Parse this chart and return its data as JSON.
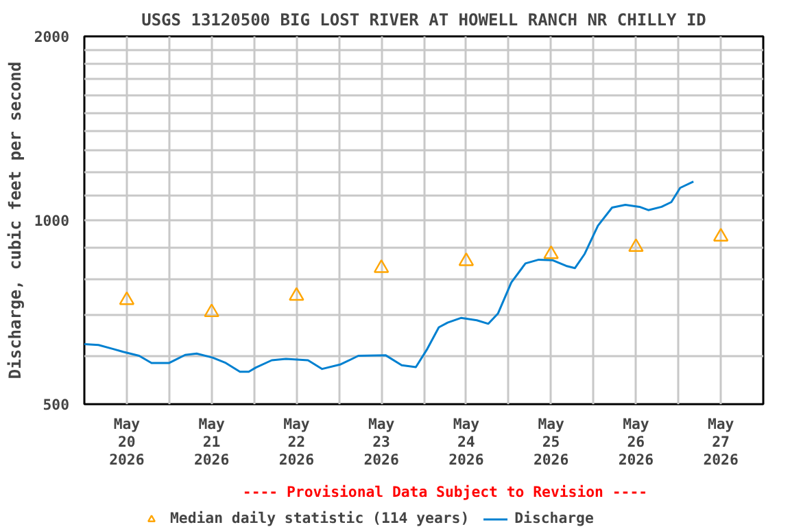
{
  "chart_data": {
    "type": "line",
    "title": "USGS 13120500 BIG LOST RIVER AT HOWELL RANCH NR CHILLY ID",
    "ylabel": "Discharge, cubic feet per second",
    "log": "y",
    "grid": true,
    "legend": "bottom",
    "annotations": [
      "---- Provisional Data Subject to Revision ----"
    ],
    "xlim": [
      "2026-05-20T00:00",
      "2026-05-28T00:00"
    ],
    "xticks": [
      {
        "value": "2026-05-20T00:00",
        "label": null
      },
      {
        "value": "2026-05-20T12:00",
        "label": "May\n20\n2026"
      },
      {
        "value": "2026-05-21T00:00",
        "label": null
      },
      {
        "value": "2026-05-21T12:00",
        "label": "May\n21\n2026"
      },
      {
        "value": "2026-05-22T00:00",
        "label": null
      },
      {
        "value": "2026-05-22T12:00",
        "label": "May\n22\n2026"
      },
      {
        "value": "2026-05-23T00:00",
        "label": null
      },
      {
        "value": "2026-05-23T12:00",
        "label": "May\n23\n2026"
      },
      {
        "value": "2026-05-24T00:00",
        "label": null
      },
      {
        "value": "2026-05-24T12:00",
        "label": "May\n24\n2026"
      },
      {
        "value": "2026-05-25T00:00",
        "label": null
      },
      {
        "value": "2026-05-25T12:00",
        "label": "May\n25\n2026"
      },
      {
        "value": "2026-05-26T00:00",
        "label": null
      },
      {
        "value": "2026-05-26T12:00",
        "label": "May\n26\n2026"
      },
      {
        "value": "2026-05-27T00:00",
        "label": null
      },
      {
        "value": "2026-05-27T12:00",
        "label": "May\n27\n2026"
      },
      {
        "value": "2026-05-28T00:00",
        "label": null
      }
    ],
    "ylim": [
      500,
      2000
    ],
    "yticks": [
      500,
      {
        "value": 600,
        "label": null
      },
      {
        "value": 700,
        "label": null
      },
      {
        "value": 800,
        "label": null
      },
      {
        "value": 900,
        "label": null
      },
      1000,
      {
        "value": 1100,
        "label": null
      },
      {
        "value": 1200,
        "label": null
      },
      {
        "value": 1300,
        "label": null
      },
      {
        "value": 1400,
        "label": null
      },
      {
        "value": 1500,
        "label": null
      },
      {
        "value": 1600,
        "label": null
      },
      {
        "value": 1700,
        "label": null
      },
      {
        "value": 1800,
        "label": null
      },
      {
        "value": 1900,
        "label": null
      },
      2000
    ],
    "series": [
      {
        "name": "Median daily statistic (114 years)",
        "type": "scatter",
        "marker": "triangle",
        "color": "#ffa500",
        "x": [
          "2026-05-20T12:00",
          "2026-05-21T12:00",
          "2026-05-22T12:00",
          "2026-05-23T12:00",
          "2026-05-24T12:00",
          "2026-05-25T12:00",
          "2026-05-26T12:00",
          "2026-05-27T12:00"
        ],
        "values": [
          740,
          707,
          752,
          835,
          857,
          880,
          904,
          940
        ]
      },
      {
        "name": "Discharge",
        "marker": "none",
        "color": "#0080d0",
        "x": [
          "2026-05-20T00:00",
          "2026-05-20T04:00",
          "2026-05-20T08:00",
          "2026-05-20T11:00",
          "2026-05-20T15:30",
          "2026-05-20T19:00",
          "2026-05-21T00:00",
          "2026-05-21T04:30",
          "2026-05-21T07:45",
          "2026-05-21T12:15",
          "2026-05-21T16:00",
          "2026-05-21T20:00",
          "2026-05-21T22:30",
          "2026-05-22T00:30",
          "2026-05-22T05:00",
          "2026-05-22T09:00",
          "2026-05-22T15:15",
          "2026-05-22T19:15",
          "2026-05-23T00:30",
          "2026-05-23T05:30",
          "2026-05-23T13:15",
          "2026-05-23T17:45",
          "2026-05-23T21:45",
          "2026-05-24T01:00",
          "2026-05-24T04:15",
          "2026-05-24T06:45",
          "2026-05-24T10:30",
          "2026-05-24T15:00",
          "2026-05-24T18:15",
          "2026-05-24T21:00",
          "2026-05-25T00:45",
          "2026-05-25T04:45",
          "2026-05-25T08:30",
          "2026-05-25T12:30",
          "2026-05-25T16:15",
          "2026-05-25T18:45",
          "2026-05-25T21:30",
          "2026-05-26T01:15",
          "2026-05-26T05:15",
          "2026-05-26T09:00",
          "2026-05-26T13:00",
          "2026-05-26T15:30",
          "2026-05-26T19:15",
          "2026-05-26T22:00",
          "2026-05-27T00:30",
          "2026-05-27T04:15"
        ],
        "values": [
          627,
          625,
          616,
          609,
          600,
          584,
          584,
          602,
          605,
          596,
          584,
          565,
          565,
          574,
          590,
          593,
          590,
          571,
          581,
          600,
          601,
          579,
          575,
          616,
          668,
          680,
          692,
          686,
          677,
          704,
          791,
          850,
          862,
          860,
          842,
          835,
          881,
          980,
          1049,
          1060,
          1052,
          1039,
          1052,
          1071,
          1130,
          1157
        ]
      }
    ]
  }
}
